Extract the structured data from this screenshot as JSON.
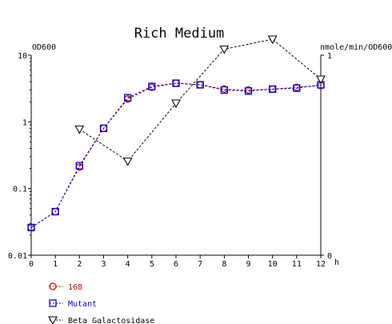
{
  "chart_data": {
    "type": "line",
    "title": "Rich Medium",
    "x": [
      0,
      1,
      2,
      3,
      4,
      5,
      6,
      7,
      8,
      9,
      10,
      11,
      12
    ],
    "x_tick_labels": [
      "0",
      "1",
      "2",
      "3",
      "4",
      "5",
      "6",
      "7",
      "8",
      "9",
      "10",
      "11",
      "12"
    ],
    "xlabel": "h",
    "xlim": [
      0,
      12
    ],
    "y_left": {
      "label": "OD600",
      "scale": "log",
      "lim": [
        0.01,
        10
      ],
      "tick_values": [
        10,
        1,
        0.1,
        0.01
      ],
      "tick_labels": [
        "10",
        "1",
        "0.1",
        "0.01"
      ]
    },
    "y_right": {
      "label": "nmole/min/OD600",
      "scale": "linear",
      "lim": [
        0,
        1
      ],
      "tick_values": [
        1,
        0
      ],
      "tick_labels": [
        "1",
        "0"
      ]
    },
    "series": [
      {
        "name": "168",
        "axis": "left",
        "color": "#cc0000",
        "marker": "circle",
        "x": [
          0,
          1,
          2,
          3,
          4,
          5,
          6,
          7,
          8,
          9,
          10,
          11,
          12
        ],
        "values": [
          0.026,
          0.045,
          0.21,
          0.8,
          2.2,
          3.3,
          3.8,
          3.6,
          3.1,
          3.0,
          3.1,
          3.3,
          3.5
        ]
      },
      {
        "name": "Mutant",
        "axis": "left",
        "color": "#0000cc",
        "marker": "square",
        "x": [
          0,
          1,
          2,
          3,
          4,
          5,
          6,
          7,
          8,
          9,
          10,
          11,
          12
        ],
        "values": [
          0.026,
          0.045,
          0.22,
          0.8,
          2.3,
          3.4,
          3.8,
          3.6,
          3.0,
          2.9,
          3.1,
          3.2,
          3.6
        ]
      },
      {
        "name": "Beta Galactosidase",
        "axis": "right",
        "color": "#000000",
        "marker": "triangle-down",
        "x": [
          2,
          4,
          6,
          8,
          10,
          12
        ],
        "values": [
          0.63,
          0.47,
          0.76,
          1.03,
          1.08,
          0.88
        ]
      }
    ],
    "legend_position": "bottom-left",
    "grid": false
  }
}
